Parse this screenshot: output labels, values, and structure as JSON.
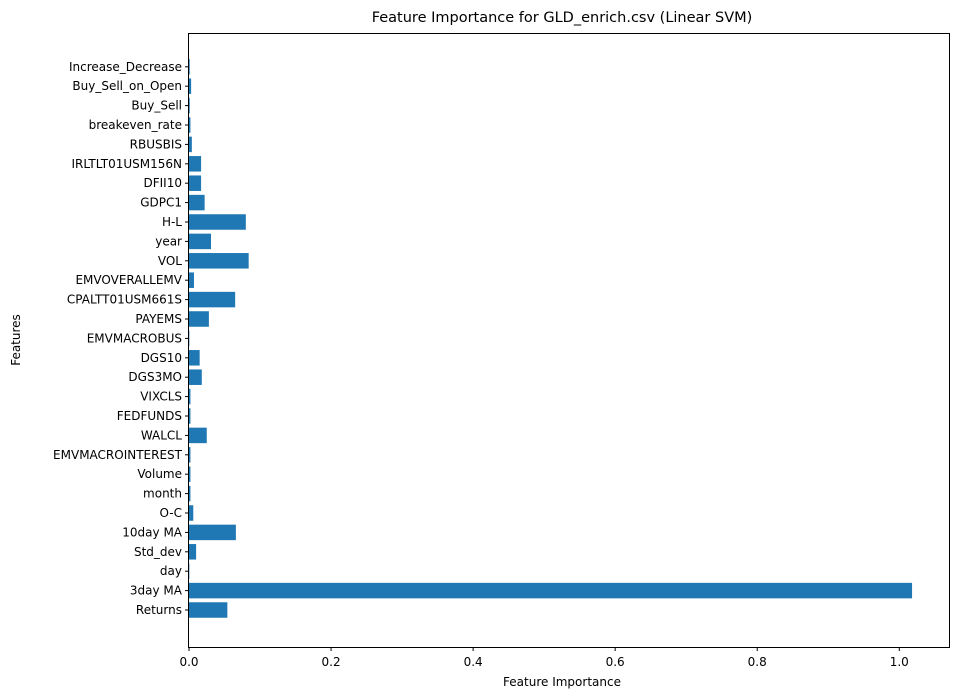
{
  "chart_data": {
    "type": "bar",
    "orientation": "horizontal",
    "title": "Feature Importance for GLD_enrich.csv (Linear SVM)",
    "xlabel": "Feature Importance",
    "ylabel": "Features",
    "xlim": [
      0,
      1.07
    ],
    "xticks": [
      0.0,
      0.2,
      0.4,
      0.6,
      0.8,
      1.0
    ],
    "xtick_labels": [
      "0.0",
      "0.2",
      "0.4",
      "0.6",
      "0.8",
      "1.0"
    ],
    "grid": false,
    "bar_color": "#1f77b4",
    "categories": [
      "Returns",
      "3day MA",
      "day",
      "Std_dev",
      "10day MA",
      "O-C",
      "month",
      "Volume",
      "EMVMACROINTEREST",
      "WALCL",
      "FEDFUNDS",
      "VIXCLS",
      "DGS3MO",
      "DGS10",
      "EMVMACROBUS",
      "PAYEMS",
      "CPALTT01USM661S",
      "EMVOVERALLEMV",
      "VOL",
      "year",
      "H-L",
      "GDPC1",
      "DFII10",
      "IRLTLT01USM156N",
      "RBUSBIS",
      "breakeven_rate",
      "Buy_Sell",
      "Buy_Sell_on_Open",
      "Increase_Decrease"
    ],
    "values": [
      0.054,
      1.018,
      0.0005,
      0.01,
      0.066,
      0.006,
      0.002,
      0.002,
      0.002,
      0.025,
      0.002,
      0.002,
      0.018,
      0.015,
      0.0005,
      0.028,
      0.065,
      0.007,
      0.084,
      0.031,
      0.08,
      0.022,
      0.017,
      0.017,
      0.004,
      0.002,
      0.001,
      0.003,
      0.001
    ]
  }
}
